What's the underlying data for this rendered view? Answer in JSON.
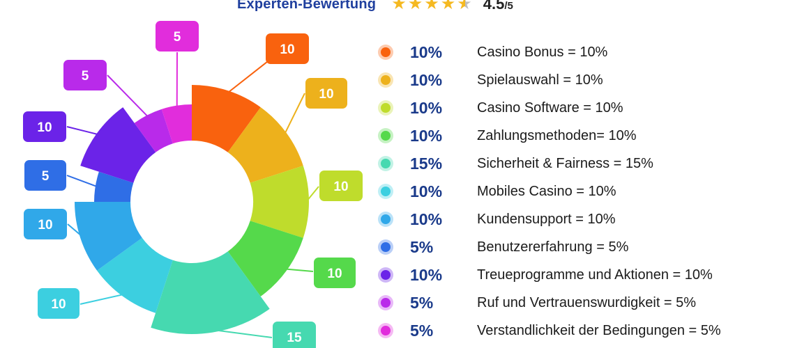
{
  "header": {
    "title": "Experten-Bewertung",
    "rating_value": "4.5",
    "rating_scale": "/5",
    "stars": [
      {
        "icon": "star-full-icon"
      },
      {
        "icon": "star-full-icon"
      },
      {
        "icon": "star-full-icon"
      },
      {
        "icon": "star-full-icon"
      },
      {
        "icon": "star-half-icon"
      }
    ]
  },
  "chart_data": {
    "type": "pie",
    "style": "polar-area-donut",
    "slices": [
      {
        "value": 10,
        "label": "10",
        "legend_pct": "10%",
        "legend_label": "Casino Bonus = 10%",
        "color": "#f9620e"
      },
      {
        "value": 10,
        "label": "10",
        "legend_pct": "10%",
        "legend_label": "Spielauswahl = 10%",
        "color": "#edb11c"
      },
      {
        "value": 10,
        "label": "10",
        "legend_pct": "10%",
        "legend_label": "Casino Software = 10%",
        "color": "#bfdc2c"
      },
      {
        "value": 10,
        "label": "10",
        "legend_pct": "10%",
        "legend_label": "Zahlungsmethoden= 10%",
        "color": "#55d94b"
      },
      {
        "value": 15,
        "label": "15",
        "legend_pct": "15%",
        "legend_label": "Sicherheit & Fairness = 15%",
        "color": "#46d9b0"
      },
      {
        "value": 10,
        "label": "10",
        "legend_pct": "10%",
        "legend_label": "Mobiles Casino = 10%",
        "color": "#3ccfe0"
      },
      {
        "value": 10,
        "label": "10",
        "legend_pct": "10%",
        "legend_label": "Kundensupport = 10%",
        "color": "#30a8e9"
      },
      {
        "value": 5,
        "label": "5",
        "legend_pct": "5%",
        "legend_label": "Benutzererfahrung = 5%",
        "color": "#2f6ee6"
      },
      {
        "value": 10,
        "label": "10",
        "legend_pct": "10%",
        "legend_label": "Treueprogramme und Aktionen = 10%",
        "color": "#6b23e8"
      },
      {
        "value": 5,
        "label": "5",
        "legend_pct": "5%",
        "legend_label": "Ruf und Vertrauenswurdigkeit = 5%",
        "color": "#b92aea"
      },
      {
        "value": 5,
        "label": "5",
        "legend_pct": "5%",
        "legend_label": "Verstandlichkeit der Bedingungen = 5%",
        "color": "#e12ddc"
      }
    ]
  }
}
